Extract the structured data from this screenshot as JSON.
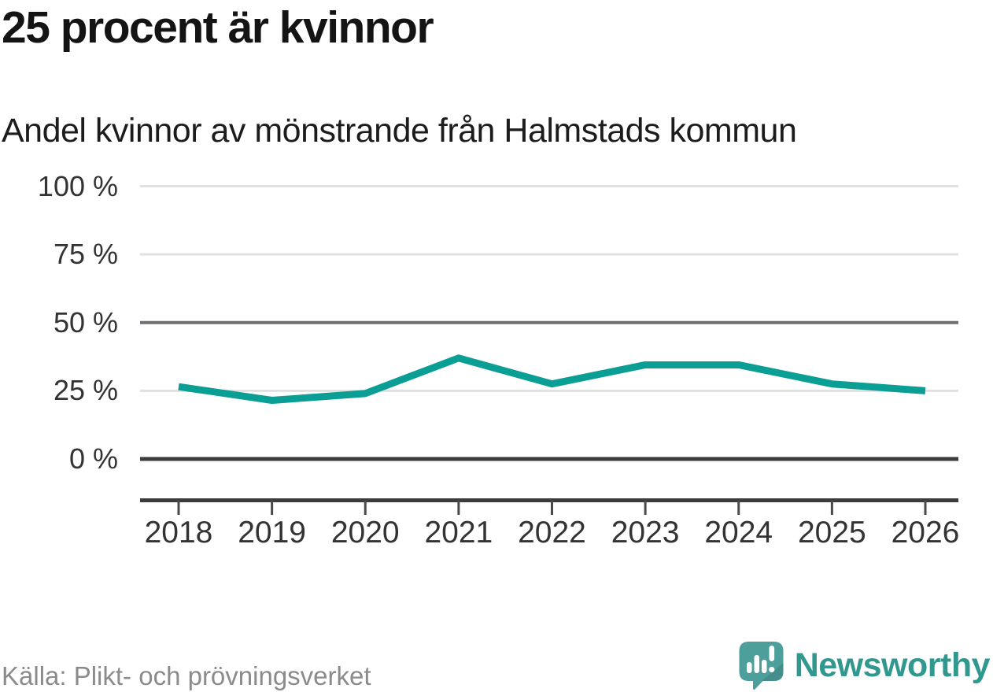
{
  "chart_data": {
    "type": "line",
    "title": "25 procent är kvinnor",
    "subtitle": "Andel kvinnor av mönstrande från Halmstads kommun",
    "categories": [
      "2018",
      "2019",
      "2020",
      "2021",
      "2022",
      "2023",
      "2024",
      "2025",
      "2026"
    ],
    "values": [
      26.5,
      21.5,
      24,
      37,
      27.5,
      34.5,
      34.5,
      27.5,
      25
    ],
    "unit": "%",
    "ylim": [
      0,
      100
    ],
    "yticks": [
      0,
      25,
      50,
      75,
      100
    ],
    "ytick_labels": [
      "0 %",
      "25 %",
      "50 %",
      "75 %",
      "100 %"
    ],
    "grid": "horizontal",
    "legend": "none",
    "line_color": "#0a9e94",
    "style": {
      "grid_light": "#e1e1e1",
      "grid_strong": "#6f6f73",
      "axis_color": "#3c3c3c",
      "tick_color": "#4a4a4a",
      "label_color": "#333333"
    }
  },
  "footer": {
    "source": "Källa: Plikt- och prövningsverket",
    "brand": "Newsworthy",
    "brand_color": "#31988f",
    "logo_color": "#4d9f9c",
    "logo_icon": "newsworthy-speech-bubble-bars-icon"
  }
}
